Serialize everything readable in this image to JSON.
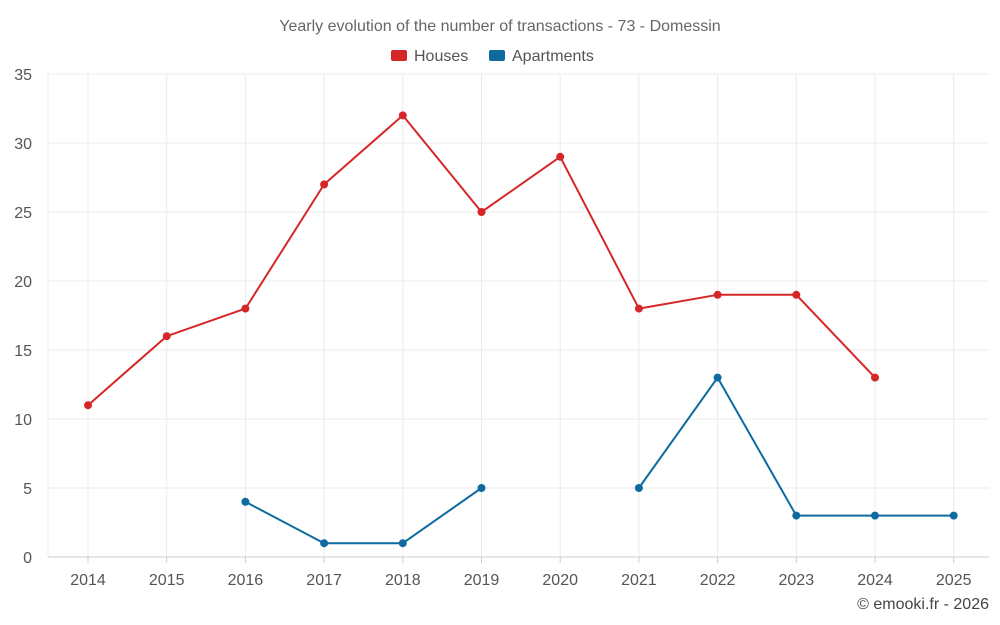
{
  "chart_data": {
    "type": "line",
    "title": "Yearly evolution of the number of transactions - 73 - Domessin",
    "categories": [
      "2014",
      "2015",
      "2016",
      "2017",
      "2018",
      "2019",
      "2020",
      "2021",
      "2022",
      "2023",
      "2024",
      "2025"
    ],
    "ylim": [
      0,
      35
    ],
    "yticks": [
      0,
      5,
      10,
      15,
      20,
      25,
      30,
      35
    ],
    "grid": true,
    "legend_position": "top-center",
    "series": [
      {
        "name": "Houses",
        "color": "#d62728",
        "values": [
          11,
          16,
          18,
          27,
          32,
          25,
          29,
          18,
          19,
          19,
          13,
          null
        ]
      },
      {
        "name": "Apartments",
        "color": "#0f6aa0",
        "values": [
          null,
          null,
          4,
          1,
          1,
          5,
          null,
          5,
          13,
          3,
          3,
          3
        ]
      }
    ]
  },
  "credit": "© emooki.fr - 2026"
}
